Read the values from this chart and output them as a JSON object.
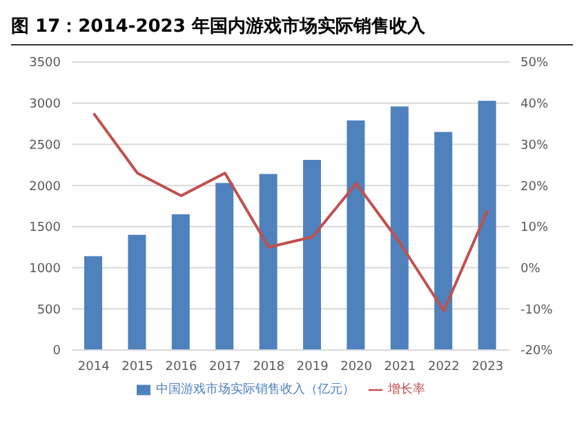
{
  "chart_data": {
    "type": "bar",
    "title": "图 17：2014-2023 年国内游戏市场实际销售收入",
    "categories": [
      "2014",
      "2015",
      "2016",
      "2017",
      "2018",
      "2019",
      "2020",
      "2021",
      "2022",
      "2023"
    ],
    "series": [
      {
        "name": "中国游戏市场实际销售收入（亿元）",
        "color": "#4f81bd",
        "values": [
          1140,
          1400,
          1650,
          2030,
          2140,
          2310,
          2790,
          2960,
          2650,
          3030
        ]
      },
      {
        "name": "增长率",
        "type": "line",
        "axis": "y2",
        "color": "#c0504d",
        "values": [
          37.5,
          23,
          17.5,
          23,
          5,
          7.5,
          20.5,
          6,
          -10.5,
          14
        ]
      }
    ],
    "ylim": [
      0,
      3500
    ],
    "yticks": [
      0,
      500,
      1000,
      1500,
      2000,
      2500,
      3000,
      3500
    ],
    "y2lim": [
      -20,
      50
    ],
    "y2ticks": [
      {
        "value": -20,
        "label": "-20%"
      },
      {
        "value": -10,
        "label": "-10%"
      },
      {
        "value": 0,
        "label": "0%"
      },
      {
        "value": 10,
        "label": "10%"
      },
      {
        "value": 20,
        "label": "20%"
      },
      {
        "value": 30,
        "label": "30%"
      },
      {
        "value": 40,
        "label": "40%"
      },
      {
        "value": 50,
        "label": "50%"
      }
    ],
    "grid": "y",
    "legend": "bottom",
    "marker": "none"
  }
}
